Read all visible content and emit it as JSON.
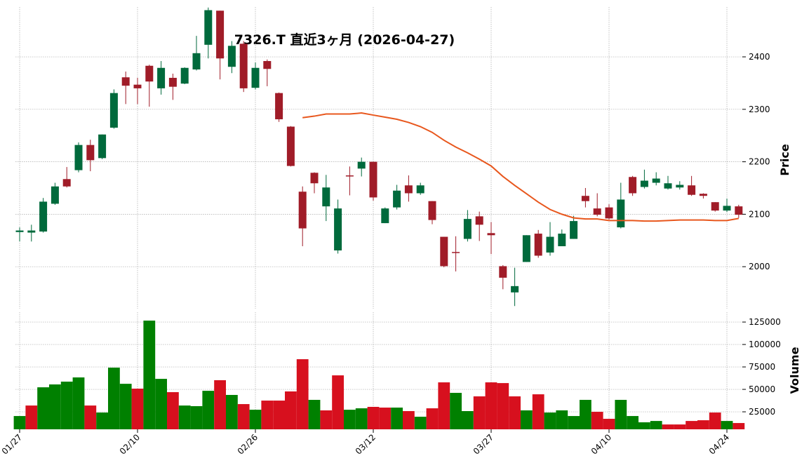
{
  "chart_data": {
    "type": "candlestick",
    "title": "7326.T  直近3ヶ月  (2026-04-27)",
    "categories": [
      "01/27",
      null,
      null,
      null,
      null,
      null,
      null,
      null,
      null,
      null,
      "02/10",
      null,
      null,
      null,
      null,
      null,
      null,
      null,
      null,
      null,
      "02/26",
      null,
      null,
      null,
      null,
      null,
      null,
      null,
      null,
      null,
      "03/12",
      null,
      null,
      null,
      null,
      null,
      null,
      null,
      null,
      null,
      "03/27",
      null,
      null,
      null,
      null,
      null,
      null,
      null,
      null,
      null,
      "04/10",
      null,
      null,
      null,
      null,
      null,
      null,
      null,
      null,
      null,
      "04/24",
      null
    ],
    "ylabel": "Price",
    "ylim": [
      1920,
      2495
    ],
    "yticks": [
      2000,
      2100,
      2200,
      2300,
      2400
    ],
    "up_color": "#006a3c",
    "down_color": "#a01c28",
    "open": [
      2066,
      2065,
      2067,
      2120,
      2167,
      2184,
      2232,
      2207,
      2265,
      2361,
      2347,
      2383,
      2340,
      2360,
      2349,
      2376,
      2423,
      2488,
      2381,
      2425,
      2341,
      2392,
      2331,
      2267,
      2143,
      2179,
      2115,
      2031,
      2174,
      2187,
      2200,
      2083,
      2113,
      2155,
      2140,
      2125,
      2057,
      2028,
      2053,
      2096,
      2064,
      2001,
      1951,
      2009,
      2063,
      2027,
      2039,
      2053,
      2135,
      2111,
      2113,
      2075,
      2171,
      2152,
      2160,
      2149,
      2151,
      2155,
      2139,
      2123,
      2107,
      2115
    ],
    "high": [
      2075,
      2080,
      2131,
      2160,
      2190,
      2237,
      2242,
      2252,
      2338,
      2372,
      2360,
      2385,
      2392,
      2368,
      2380,
      2440,
      2494,
      2488,
      2430,
      2430,
      2389,
      2395,
      2332,
      2268,
      2153,
      2180,
      2175,
      2128,
      2191,
      2208,
      2200,
      2113,
      2156,
      2174,
      2160,
      2125,
      2057,
      2058,
      2108,
      2105,
      2085,
      2003,
      1998,
      2060,
      2070,
      2085,
      2071,
      2097,
      2150,
      2140,
      2119,
      2160,
      2173,
      2185,
      2180,
      2173,
      2163,
      2173,
      2140,
      2123,
      2130,
      2118
    ],
    "low": [
      2048,
      2048,
      2065,
      2118,
      2151,
      2180,
      2182,
      2205,
      2263,
      2310,
      2310,
      2305,
      2328,
      2318,
      2348,
      2374,
      2397,
      2357,
      2369,
      2333,
      2338,
      2344,
      2276,
      2191,
      2039,
      2140,
      2087,
      2025,
      2136,
      2172,
      2126,
      2083,
      2109,
      2124,
      2137,
      2081,
      1999,
      1991,
      2048,
      2049,
      2024,
      1957,
      1925,
      2009,
      2017,
      2021,
      2039,
      2053,
      2113,
      2096,
      2090,
      2073,
      2135,
      2149,
      2155,
      2147,
      2147,
      2135,
      2130,
      2105,
      2104,
      2093
    ],
    "close": [
      2069,
      2069,
      2124,
      2153,
      2153,
      2232,
      2203,
      2252,
      2331,
      2345,
      2340,
      2353,
      2379,
      2343,
      2379,
      2407,
      2489,
      2397,
      2421,
      2340,
      2379,
      2377,
      2281,
      2192,
      2073,
      2159,
      2151,
      2111,
      2172,
      2200,
      2132,
      2111,
      2145,
      2140,
      2155,
      2089,
      2001,
      2026,
      2091,
      2080,
      2060,
      1979,
      1963,
      2060,
      2021,
      2057,
      2063,
      2087,
      2125,
      2099,
      2092,
      2128,
      2140,
      2164,
      2168,
      2159,
      2156,
      2137,
      2135,
      2107,
      2116,
      2099
    ],
    "ma": {
      "color": "#e8571d",
      "values": [
        null,
        null,
        null,
        null,
        null,
        null,
        null,
        null,
        null,
        null,
        null,
        null,
        null,
        null,
        null,
        null,
        null,
        null,
        null,
        null,
        null,
        null,
        null,
        null,
        2284,
        2287,
        2291,
        2291,
        2291,
        2293,
        2289,
        2285,
        2281,
        2275,
        2267,
        2256,
        2241,
        2228,
        2217,
        2205,
        2192,
        2172,
        2155,
        2139,
        2123,
        2109,
        2100,
        2093,
        2091,
        2091,
        2088,
        2088,
        2088,
        2087,
        2087,
        2088,
        2089,
        2089,
        2089,
        2088,
        2088,
        2092
      ]
    },
    "volume": {
      "ylabel": "Volume",
      "ylim": [
        5500,
        136000
      ],
      "yticks": [
        25000,
        50000,
        75000,
        100000,
        125000
      ],
      "values": [
        20300,
        32000,
        52300,
        55500,
        58600,
        63300,
        32000,
        24200,
        74200,
        56200,
        50800,
        126600,
        61700,
        46900,
        32000,
        31300,
        48400,
        60200,
        43800,
        33600,
        27300,
        37500,
        37500,
        47700,
        83600,
        38300,
        26600,
        65600,
        27300,
        28900,
        30500,
        29700,
        29700,
        25800,
        19500,
        28900,
        57800,
        46100,
        25800,
        42200,
        57800,
        57000,
        42200,
        26600,
        44500,
        24200,
        26600,
        20300,
        38300,
        25000,
        17200,
        38300,
        20300,
        13300,
        14800,
        10900,
        10900,
        14800,
        15600,
        24200,
        14800,
        12500
      ],
      "colors": [
        "#008000",
        "#d7101e",
        "#008000",
        "#008000",
        "#008000",
        "#008000",
        "#d7101e",
        "#008000",
        "#008000",
        "#008000",
        "#d7101e",
        "#008000",
        "#008000",
        "#d7101e",
        "#008000",
        "#008000",
        "#008000",
        "#d7101e",
        "#008000",
        "#d7101e",
        "#008000",
        "#d7101e",
        "#d7101e",
        "#d7101e",
        "#d7101e",
        "#008000",
        "#d7101e",
        "#d7101e",
        "#008000",
        "#008000",
        "#d7101e",
        "#d7101e",
        "#008000",
        "#d7101e",
        "#008000",
        "#d7101e",
        "#d7101e",
        "#008000",
        "#008000",
        "#d7101e",
        "#d7101e",
        "#d7101e",
        "#d7101e",
        "#008000",
        "#d7101e",
        "#008000",
        "#008000",
        "#008000",
        "#008000",
        "#d7101e",
        "#d7101e",
        "#008000",
        "#008000",
        "#008000",
        "#008000",
        "#d7101e",
        "#d7101e",
        "#d7101e",
        "#d7101e",
        "#d7101e",
        "#008000",
        "#d7101e"
      ]
    },
    "grid": true
  }
}
